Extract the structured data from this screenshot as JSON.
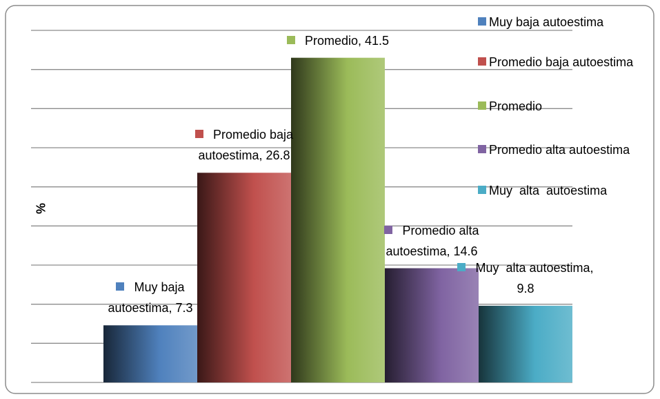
{
  "chart_data": {
    "type": "bar",
    "y_label": "%",
    "series": [
      {
        "name": "Muy baja autoestima",
        "color": "#4f81bd",
        "values": [
          7.3
        ],
        "value_labels": [
          "Muy baja autoestima, 7.3"
        ]
      },
      {
        "name": "Promedio baja autoestima",
        "color": "#c0504d",
        "values": [
          26.8
        ],
        "value_labels": [
          "Promedio baja autoestima, 26.8"
        ]
      },
      {
        "name": "Promedio",
        "color": "#9bbb59",
        "values": [
          41.5
        ],
        "value_labels": [
          "Promedio, 41.5"
        ]
      },
      {
        "name": "Promedio alta autoestima",
        "color": "#8064a2",
        "values": [
          14.6
        ],
        "value_labels": [
          "Promedio alta autoestima, 14.6"
        ]
      },
      {
        "name": "Muy  alta  autoestima",
        "color": "#4bacc6",
        "values": [
          9.8
        ],
        "value_labels": [
          "Muy  alta autoestima, 9.8"
        ]
      }
    ],
    "ylim": [
      0,
      45
    ],
    "yticks": [
      0,
      5,
      10,
      15,
      20,
      25,
      30,
      35,
      40,
      45
    ],
    "grid": true,
    "legend": "right"
  }
}
